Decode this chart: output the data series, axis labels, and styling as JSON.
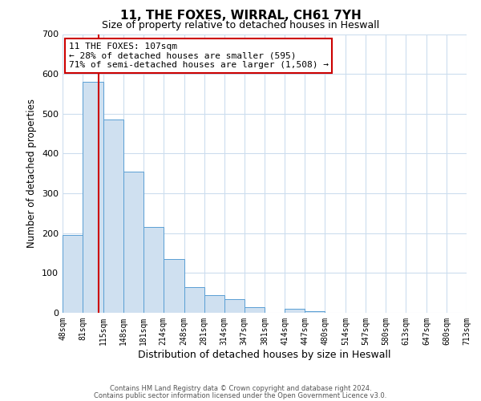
{
  "title": "11, THE FOXES, WIRRAL, CH61 7YH",
  "subtitle": "Size of property relative to detached houses in Heswall",
  "xlabel": "Distribution of detached houses by size in Heswall",
  "ylabel": "Number of detached properties",
  "bin_edges": [
    48,
    81,
    115,
    148,
    181,
    214,
    248,
    281,
    314,
    347,
    381,
    414,
    447,
    480,
    514,
    547,
    580,
    613,
    647,
    680,
    713
  ],
  "bar_heights": [
    195,
    580,
    485,
    355,
    215,
    135,
    65,
    45,
    35,
    15,
    0,
    10,
    5,
    0,
    0,
    0,
    0,
    0,
    0,
    0
  ],
  "bar_color": "#cfe0f0",
  "bar_edge_color": "#5a9fd4",
  "vline_x": 107,
  "vline_color": "#cc0000",
  "annotation_title": "11 THE FOXES: 107sqm",
  "annotation_line1": "← 28% of detached houses are smaller (595)",
  "annotation_line2": "71% of semi-detached houses are larger (1,508) →",
  "annotation_box_color": "#cc0000",
  "xlim_left": 48,
  "xlim_right": 713,
  "ylim_top": 700,
  "yticks": [
    0,
    100,
    200,
    300,
    400,
    500,
    600,
    700
  ],
  "tick_labels": [
    "48sqm",
    "81sqm",
    "115sqm",
    "148sqm",
    "181sqm",
    "214sqm",
    "248sqm",
    "281sqm",
    "314sqm",
    "347sqm",
    "381sqm",
    "414sqm",
    "447sqm",
    "480sqm",
    "514sqm",
    "547sqm",
    "580sqm",
    "613sqm",
    "647sqm",
    "680sqm",
    "713sqm"
  ],
  "footnote1": "Contains HM Land Registry data © Crown copyright and database right 2024.",
  "footnote2": "Contains public sector information licensed under the Open Government Licence v3.0.",
  "background_color": "#ffffff",
  "grid_color": "#ccddee"
}
